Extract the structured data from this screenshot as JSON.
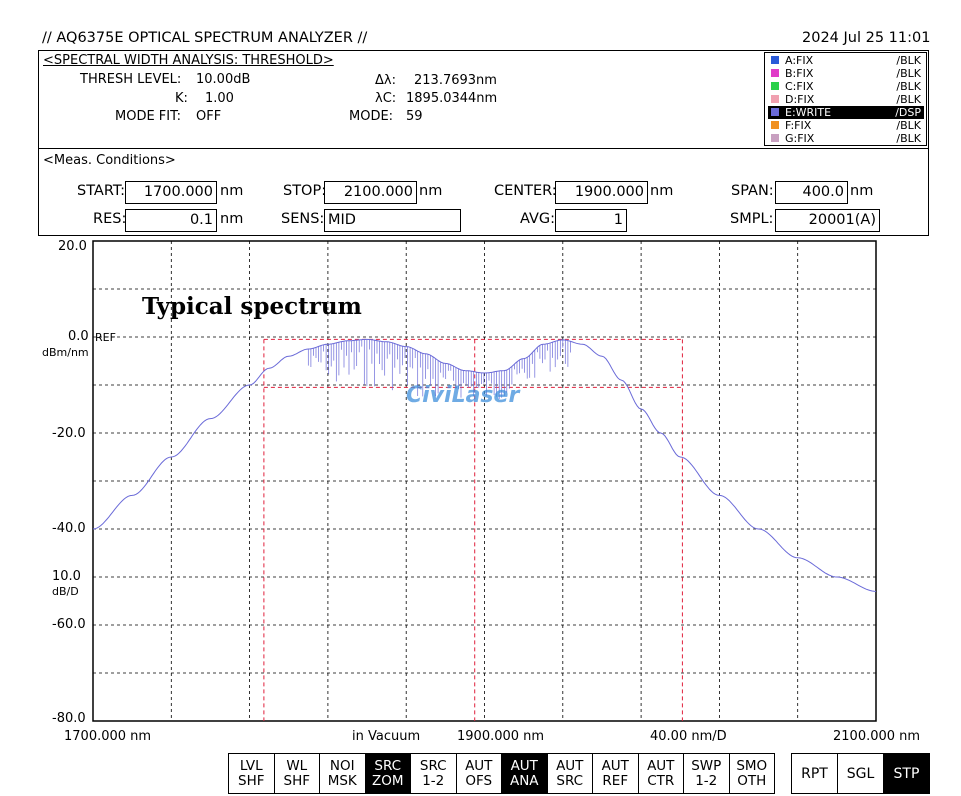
{
  "header": {
    "title": "// AQ6375E OPTICAL SPECTRUM ANALYZER //",
    "datetime": "2024 Jul 25 11:01"
  },
  "analysis": {
    "title": "<SPECTRAL WIDTH ANALYSIS: THRESHOLD>",
    "thresh_label": "THRESH LEVEL:",
    "thresh_value": "10.00dB",
    "k_label": "K:",
    "k_value": "1.00",
    "modefit_label": "MODE FIT:",
    "modefit_value": "OFF",
    "dl_label": "Δλ:",
    "dl_value": "213.7693nm",
    "lc_label": "λC:",
    "lc_value": "1895.0344nm",
    "mode_label": "MODE:",
    "mode_value": "59"
  },
  "traces": [
    {
      "name": "A:FIX",
      "state": "/BLK",
      "color": "#2a5ad8"
    },
    {
      "name": "B:FIX",
      "state": "/BLK",
      "color": "#e03cc8"
    },
    {
      "name": "C:FIX",
      "state": "/BLK",
      "color": "#2ad04a"
    },
    {
      "name": "D:FIX",
      "state": "/BLK",
      "color": "#f0a0b0"
    },
    {
      "name": "E:WRITE",
      "state": "/DSP",
      "color": "#6a6ad8",
      "active": true
    },
    {
      "name": "F:FIX",
      "state": "/BLK",
      "color": "#f09020"
    },
    {
      "name": "G:FIX",
      "state": "/BLK",
      "color": "#c8a0c0"
    }
  ],
  "conditions": {
    "title": "<Meas. Conditions>",
    "start_label": "START:",
    "start_value": "1700.000",
    "start_unit": "nm",
    "stop_label": "STOP:",
    "stop_value": "2100.000",
    "stop_unit": "nm",
    "center_label": "CENTER:",
    "center_value": "1900.000",
    "center_unit": "nm",
    "span_label": "SPAN:",
    "span_value": "400.0",
    "span_unit": "nm",
    "res_label": "RES:",
    "res_value": "0.1",
    "res_unit": "nm",
    "sens_label": "SENS:",
    "sens_value": "MID",
    "avg_label": "AVG:",
    "avg_value": "1",
    "smpl_label": "SMPL:",
    "smpl_value": "20001(A)"
  },
  "plot": {
    "y_top_label": "20.0",
    "ref_label": "0.0",
    "ref_marker": "REF",
    "y_unit": "dBm/nm",
    "y_m20": "-20.0",
    "y_m40": "-40.0",
    "scale_value": "10.0",
    "scale_unit": "dB/D",
    "y_m60": "-60.0",
    "y_m80": "-80.0",
    "x_start": "1700.000 nm",
    "x_center": "1900.000 nm",
    "x_stop": "2100.000 nm",
    "x_per_div": "40.00 nm/D",
    "medium": "in Vacuum",
    "annotation": "Typical spectrum",
    "watermark": "CiviLaser",
    "trace_color": "#6a6ad8",
    "threshold_color": "#e0203c"
  },
  "chart_data": {
    "type": "line",
    "title": "Typical spectrum",
    "xlabel": "",
    "ylabel": "dBm/nm",
    "xlim": [
      1700,
      2100
    ],
    "ylim": [
      -80,
      20
    ],
    "x_unit": "nm",
    "grid": true,
    "series": [
      {
        "name": "E:WRITE",
        "x": [
          1700,
          1720,
          1740,
          1760,
          1780,
          1790,
          1800,
          1810,
          1820,
          1830,
          1840,
          1850,
          1860,
          1870,
          1880,
          1890,
          1900,
          1910,
          1920,
          1930,
          1940,
          1950,
          1960,
          1970,
          1980,
          1990,
          2000,
          2020,
          2040,
          2060,
          2080,
          2100
        ],
        "y": [
          -40,
          -33,
          -25,
          -17,
          -10,
          -6.5,
          -4,
          -2.5,
          -1.5,
          -0.8,
          -0.5,
          -1,
          -2,
          -3.5,
          -5.5,
          -7,
          -7.5,
          -7,
          -4.5,
          -1.5,
          -0.6,
          -1.5,
          -4,
          -9,
          -15,
          -20,
          -25,
          -33,
          -40,
          -46,
          -50,
          -53
        ]
      }
    ],
    "threshold_box": {
      "x_left": 1787.3,
      "x_right": 2001.1,
      "y_top": -0.5,
      "y_bottom": -10.5,
      "x_center": 1895.0
    }
  },
  "softkeys": [
    {
      "line1": "LVL",
      "line2": "SHF",
      "on": false
    },
    {
      "line1": "WL",
      "line2": "SHF",
      "on": false
    },
    {
      "line1": "NOI",
      "line2": "MSK",
      "on": false
    },
    {
      "line1": "SRC",
      "line2": "ZOM",
      "on": true
    },
    {
      "line1": "SRC",
      "line2": "1-2",
      "on": false
    },
    {
      "line1": "AUT",
      "line2": "OFS",
      "on": false
    },
    {
      "line1": "AUT",
      "line2": "ANA",
      "on": true
    },
    {
      "line1": "AUT",
      "line2": "SRC",
      "on": false
    },
    {
      "line1": "AUT",
      "line2": "REF",
      "on": false
    },
    {
      "line1": "AUT",
      "line2": "CTR",
      "on": false
    },
    {
      "line1": "SWP",
      "line2": "1-2",
      "on": false
    },
    {
      "line1": "SMO",
      "line2": "OTH",
      "on": false
    }
  ],
  "sweep_keys": [
    {
      "label": "RPT",
      "on": false
    },
    {
      "label": "SGL",
      "on": false
    },
    {
      "label": "STP",
      "on": true
    }
  ]
}
